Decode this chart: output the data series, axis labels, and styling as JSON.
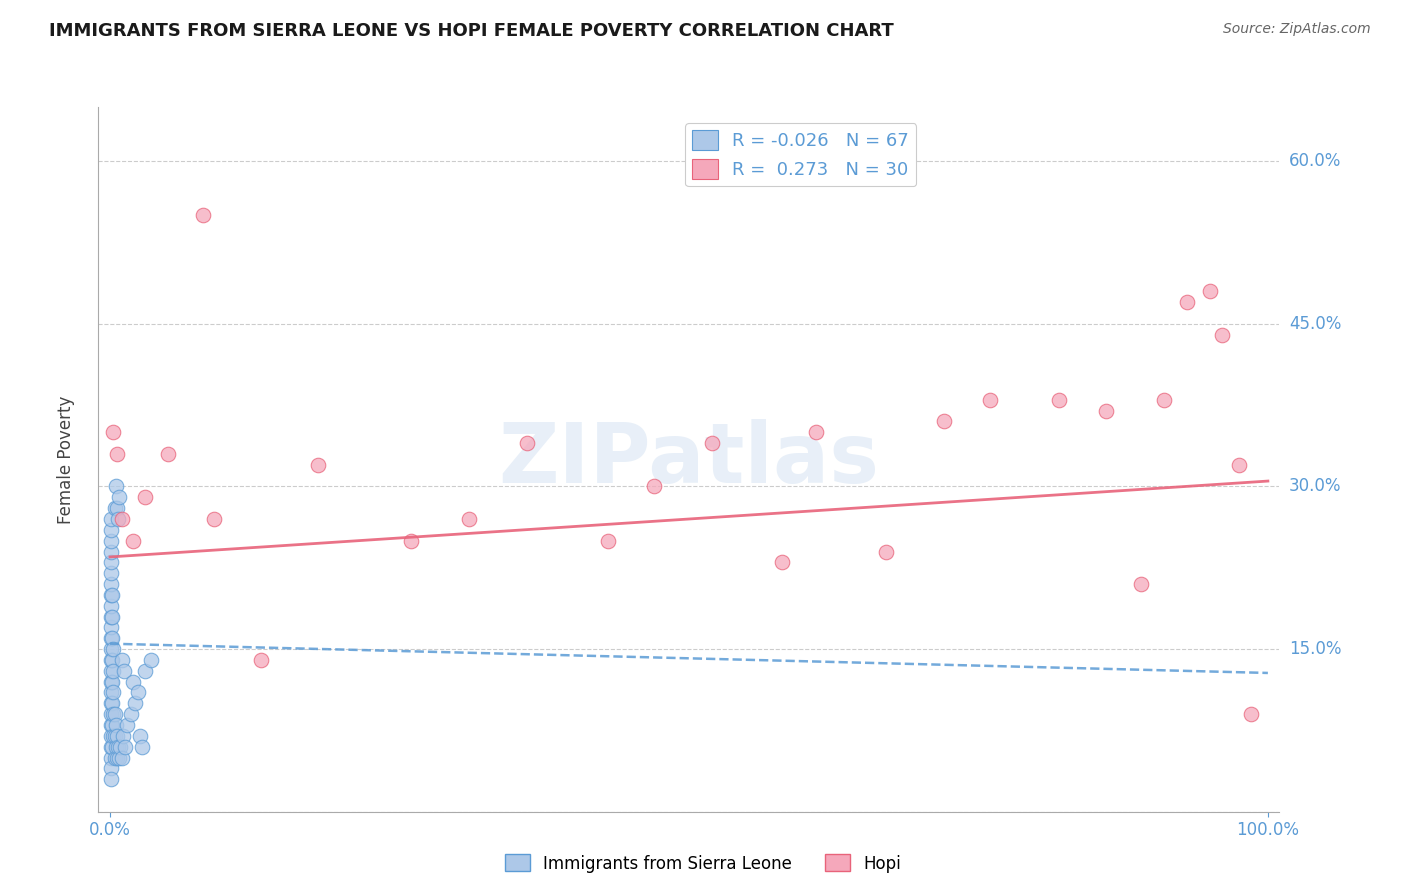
{
  "title": "IMMIGRANTS FROM SIERRA LEONE VS HOPI FEMALE POVERTY CORRELATION CHART",
  "source": "Source: ZipAtlas.com",
  "ylabel": "Female Poverty",
  "xlim": [
    0.0,
    1.0
  ],
  "ylim": [
    0.0,
    0.65
  ],
  "yticks": [
    0.0,
    0.15,
    0.3,
    0.45,
    0.6
  ],
  "ytick_labels": [
    "",
    "15.0%",
    "30.0%",
    "45.0%",
    "60.0%"
  ],
  "legend_r_blue": "-0.026",
  "legend_n_blue": "67",
  "legend_r_pink": "0.273",
  "legend_n_pink": "30",
  "blue_color": "#adc8e8",
  "pink_color": "#f5a8bb",
  "blue_edge_color": "#5b9bd5",
  "pink_edge_color": "#e8637a",
  "blue_line_color": "#5b9bd5",
  "pink_line_color": "#e8637a",
  "blue_trend": [
    0.0,
    0.155,
    1.0,
    0.128
  ],
  "pink_trend": [
    0.0,
    0.235,
    1.0,
    0.305
  ],
  "blue_scatter_x": [
    0.0005,
    0.001,
    0.001,
    0.001,
    0.001,
    0.001,
    0.001,
    0.001,
    0.001,
    0.001,
    0.001,
    0.001,
    0.001,
    0.001,
    0.001,
    0.001,
    0.001,
    0.001,
    0.001,
    0.001,
    0.001,
    0.001,
    0.001,
    0.001,
    0.001,
    0.002,
    0.002,
    0.002,
    0.002,
    0.002,
    0.002,
    0.002,
    0.002,
    0.003,
    0.003,
    0.003,
    0.003,
    0.003,
    0.004,
    0.004,
    0.004,
    0.004,
    0.005,
    0.005,
    0.005,
    0.006,
    0.006,
    0.006,
    0.007,
    0.007,
    0.008,
    0.008,
    0.009,
    0.01,
    0.01,
    0.011,
    0.012,
    0.013,
    0.015,
    0.018,
    0.02,
    0.022,
    0.024,
    0.026,
    0.028,
    0.03,
    0.035
  ],
  "blue_scatter_y": [
    0.08,
    0.05,
    0.06,
    0.07,
    0.09,
    0.1,
    0.11,
    0.12,
    0.13,
    0.14,
    0.15,
    0.16,
    0.17,
    0.18,
    0.19,
    0.2,
    0.21,
    0.22,
    0.23,
    0.24,
    0.25,
    0.26,
    0.27,
    0.04,
    0.03,
    0.06,
    0.08,
    0.1,
    0.12,
    0.14,
    0.16,
    0.18,
    0.2,
    0.07,
    0.09,
    0.11,
    0.13,
    0.15,
    0.05,
    0.07,
    0.09,
    0.28,
    0.06,
    0.08,
    0.3,
    0.05,
    0.07,
    0.28,
    0.06,
    0.27,
    0.05,
    0.29,
    0.06,
    0.05,
    0.14,
    0.07,
    0.13,
    0.06,
    0.08,
    0.09,
    0.12,
    0.1,
    0.11,
    0.07,
    0.06,
    0.13,
    0.14
  ],
  "pink_scatter_x": [
    0.003,
    0.006,
    0.01,
    0.02,
    0.03,
    0.05,
    0.08,
    0.09,
    0.13,
    0.18,
    0.26,
    0.31,
    0.36,
    0.43,
    0.47,
    0.52,
    0.58,
    0.61,
    0.67,
    0.72,
    0.76,
    0.82,
    0.86,
    0.89,
    0.91,
    0.93,
    0.95,
    0.96,
    0.975,
    0.985
  ],
  "pink_scatter_y": [
    0.35,
    0.33,
    0.27,
    0.25,
    0.29,
    0.33,
    0.55,
    0.27,
    0.14,
    0.32,
    0.25,
    0.27,
    0.34,
    0.25,
    0.3,
    0.34,
    0.23,
    0.35,
    0.24,
    0.36,
    0.38,
    0.38,
    0.37,
    0.21,
    0.38,
    0.47,
    0.48,
    0.44,
    0.32,
    0.09
  ]
}
